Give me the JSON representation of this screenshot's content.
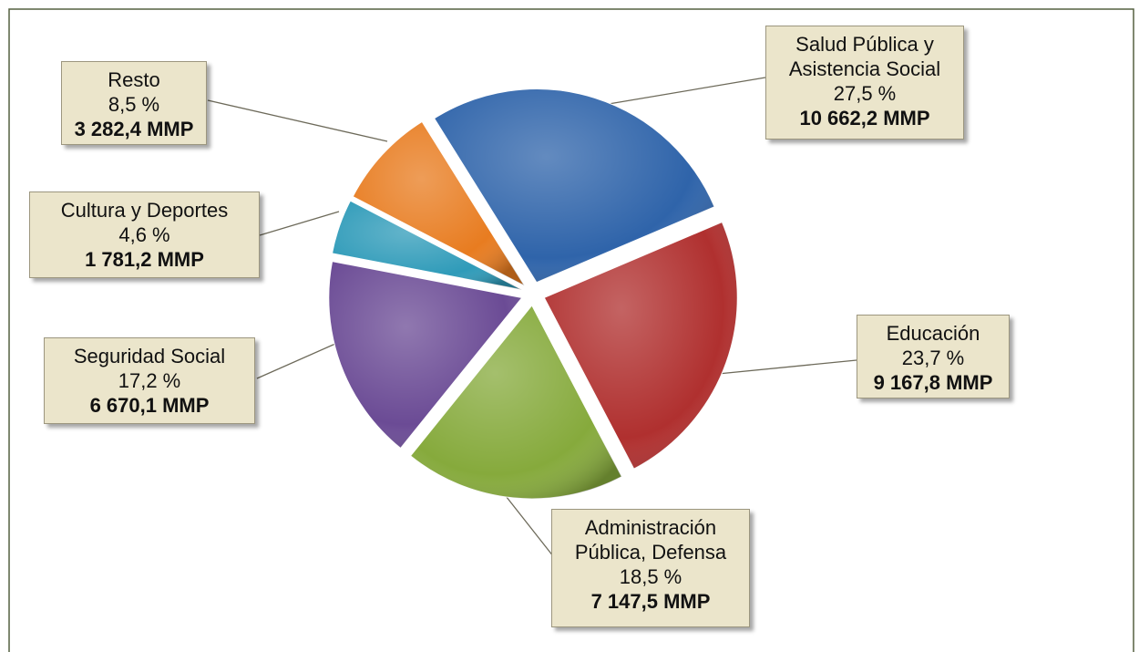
{
  "chart_data": {
    "type": "pie",
    "categories": [
      "Salud Pública y Asistencia Social",
      "Educación",
      "Administración Pública, Defensa",
      "Seguridad Social",
      "Cultura y Deportes",
      "Resto"
    ],
    "values": [
      27.5,
      23.7,
      18.5,
      17.2,
      4.6,
      8.5
    ],
    "value_labels": [
      "27,5 %",
      "23,7 %",
      "18,5 %",
      "17,2 %",
      "4,6 %",
      "8,5 %"
    ],
    "amounts": [
      10662.2,
      9167.8,
      7147.5,
      6670.1,
      1781.2,
      3282.4
    ],
    "amount_labels": [
      "10 662,2 MMP",
      "9 167,8 MMP",
      "7 147,5 MMP",
      "6 670,1 MMP",
      "1 781,2 MMP",
      "3 282,4 MMP"
    ],
    "colors": [
      "#2f64aa",
      "#b0302f",
      "#86aa3c",
      "#6b4b95",
      "#2f9bb9",
      "#e87c20"
    ]
  }
}
